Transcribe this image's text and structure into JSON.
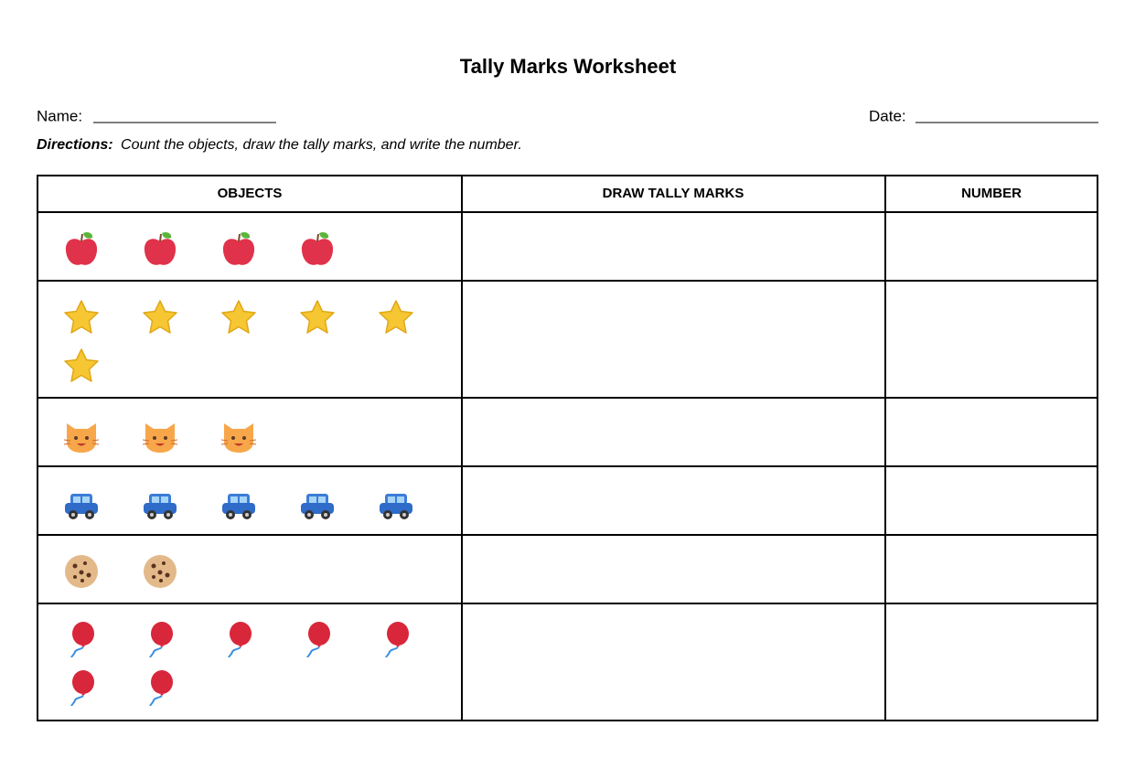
{
  "header": {
    "title": "Tally Marks Worksheet"
  },
  "fields": {
    "name_label": "Name:",
    "date_label": "Date:"
  },
  "directions": {
    "label": "Directions:",
    "text": "Count the objects, draw the tally marks, and write the number."
  },
  "table": {
    "columns": [
      "OBJECTS",
      "DRAW TALLY MARKS",
      "NUMBER"
    ]
  }
}
